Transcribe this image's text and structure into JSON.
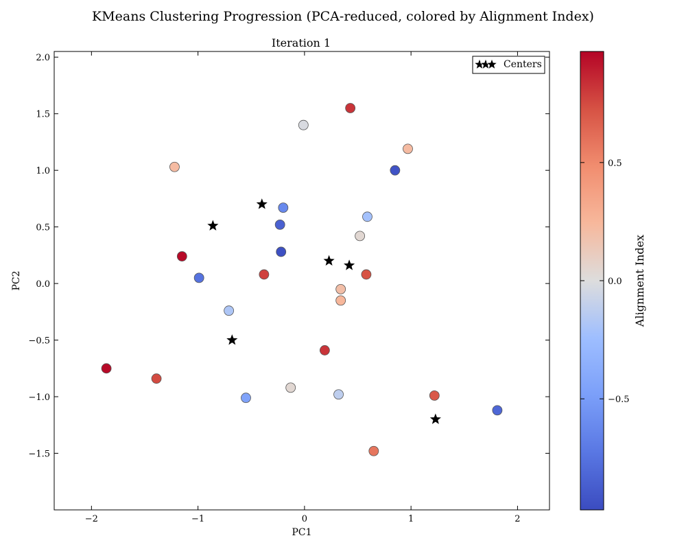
{
  "figure": {
    "suptitle": "KMeans Clustering Progression (PCA-reduced, colored by Alignment Index)"
  },
  "chart_data": {
    "type": "scatter",
    "title": "Iteration 1",
    "xlabel": "PC1",
    "ylabel": "PC2",
    "xlim": [
      -2.35,
      2.3
    ],
    "ylim": [
      -2.0,
      2.05
    ],
    "xticks": [
      -2,
      -1,
      0,
      1,
      2
    ],
    "xtick_labels": [
      "−2",
      "−1",
      "0",
      "1",
      "2"
    ],
    "yticks": [
      -1.5,
      -1.0,
      -0.5,
      0.0,
      0.5,
      1.0,
      1.5,
      2.0
    ],
    "ytick_labels": [
      "−1.5",
      "−1.0",
      "−0.5",
      "0.0",
      "0.5",
      "1.0",
      "1.5",
      "2.0"
    ],
    "grid": false,
    "legend": {
      "position": "top-right",
      "entries": [
        "Centers"
      ]
    },
    "colormap": "coolwarm",
    "colorbar": {
      "label": "Alignment Index",
      "range": [
        -0.97,
        0.97
      ],
      "ticks": [
        -0.5,
        0.0,
        0.5
      ],
      "tick_labels": [
        "−0.5",
        "0.0",
        "0.5"
      ]
    },
    "points": [
      {
        "x": 0.43,
        "y": 1.55,
        "c": 0.82
      },
      {
        "x": -0.01,
        "y": 1.4,
        "c": -0.02
      },
      {
        "x": 0.97,
        "y": 1.19,
        "c": 0.22
      },
      {
        "x": -1.22,
        "y": 1.03,
        "c": 0.22
      },
      {
        "x": 0.85,
        "y": 1.0,
        "c": -0.93
      },
      {
        "x": -0.2,
        "y": 0.67,
        "c": -0.62
      },
      {
        "x": 0.59,
        "y": 0.59,
        "c": -0.22
      },
      {
        "x": -0.23,
        "y": 0.52,
        "c": -0.85
      },
      {
        "x": 0.52,
        "y": 0.42,
        "c": 0.04
      },
      {
        "x": -0.22,
        "y": 0.28,
        "c": -0.95
      },
      {
        "x": -1.15,
        "y": 0.24,
        "c": 0.95
      },
      {
        "x": -0.99,
        "y": 0.05,
        "c": -0.75
      },
      {
        "x": -0.38,
        "y": 0.08,
        "c": 0.78
      },
      {
        "x": 0.58,
        "y": 0.08,
        "c": 0.72
      },
      {
        "x": 0.34,
        "y": -0.05,
        "c": 0.2
      },
      {
        "x": 0.34,
        "y": -0.15,
        "c": 0.25
      },
      {
        "x": -0.71,
        "y": -0.24,
        "c": -0.18
      },
      {
        "x": 0.19,
        "y": -0.59,
        "c": 0.82
      },
      {
        "x": -1.86,
        "y": -0.75,
        "c": 0.95
      },
      {
        "x": -1.39,
        "y": -0.84,
        "c": 0.75
      },
      {
        "x": -0.55,
        "y": -1.01,
        "c": -0.45
      },
      {
        "x": -0.13,
        "y": -0.92,
        "c": 0.04
      },
      {
        "x": 0.32,
        "y": -0.98,
        "c": -0.12
      },
      {
        "x": 1.22,
        "y": -0.99,
        "c": 0.7
      },
      {
        "x": 1.81,
        "y": -1.12,
        "c": -0.82
      },
      {
        "x": 0.65,
        "y": -1.48,
        "c": 0.58
      }
    ],
    "centers": [
      {
        "x": -0.4,
        "y": 0.7
      },
      {
        "x": -0.86,
        "y": 0.51
      },
      {
        "x": 0.23,
        "y": 0.2
      },
      {
        "x": 0.42,
        "y": 0.16
      },
      {
        "x": -0.68,
        "y": -0.5
      },
      {
        "x": 1.23,
        "y": -1.2
      }
    ]
  },
  "colors": {
    "cool_end": "#3b4cc0",
    "mid": "#dddddd",
    "warm_end": "#b40426",
    "center_marker": "#000000"
  }
}
